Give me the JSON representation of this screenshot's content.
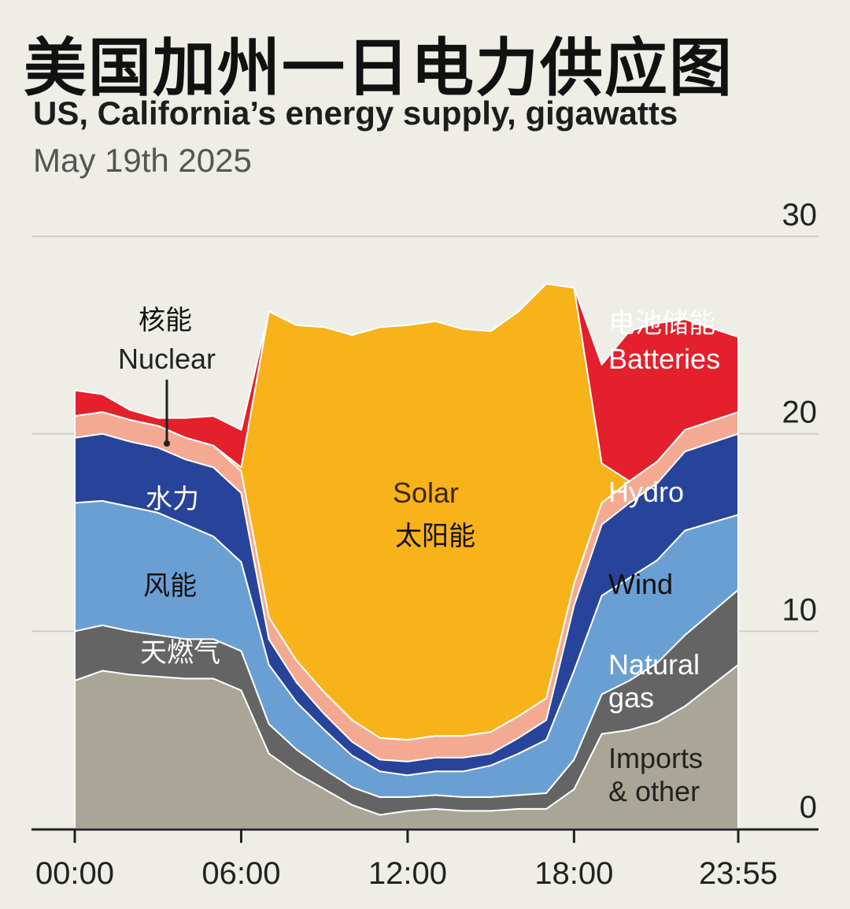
{
  "header": {
    "title_cn": "美国加州一日电力供应图",
    "subtitle": "US, California’s energy supply, gigawatts",
    "date": "May 19th 2025"
  },
  "chart_data": {
    "type": "area",
    "stacked": true,
    "x_unit": "hours",
    "x": [
      0,
      1,
      2,
      3,
      4,
      5,
      6,
      7,
      8,
      9,
      10,
      11,
      12,
      13,
      14,
      15,
      16,
      17,
      18,
      19,
      20,
      21,
      22,
      23.92
    ],
    "xticks": [
      "00:00",
      "06:00",
      "12:00",
      "18:00",
      "23:55"
    ],
    "xtick_values": [
      0,
      6,
      12,
      18,
      23.92
    ],
    "yticks": [
      0,
      10,
      20,
      30
    ],
    "ylim": [
      0,
      30
    ],
    "grid": true,
    "series": [
      {
        "name": "Imports & other",
        "label_en": "Imports\n& other",
        "color": "#a9a697",
        "values": [
          7.5,
          8.0,
          7.8,
          7.7,
          7.6,
          7.6,
          7.0,
          3.8,
          2.8,
          2.0,
          1.2,
          0.7,
          0.9,
          1.0,
          0.9,
          0.9,
          1.0,
          1.0,
          2.0,
          4.8,
          5.0,
          5.4,
          6.2,
          8.3
        ]
      },
      {
        "name": "Natural gas",
        "label_cn": "天燃气",
        "label_en": "Natural\ngas",
        "color": "#646464",
        "values": [
          2.5,
          2.3,
          2.2,
          2.1,
          2.0,
          2.0,
          2.0,
          1.5,
          1.2,
          1.0,
          0.9,
          0.9,
          0.7,
          0.7,
          0.7,
          0.7,
          0.7,
          0.8,
          1.5,
          2.0,
          2.5,
          3.0,
          3.6,
          3.8
        ]
      },
      {
        "name": "Wind",
        "label_cn": "风能",
        "label_en": "Wind",
        "color": "#6a9fd4",
        "values": [
          6.5,
          6.3,
          6.3,
          6.2,
          5.8,
          5.2,
          4.5,
          3.0,
          2.4,
          2.0,
          1.6,
          1.3,
          1.1,
          1.2,
          1.3,
          1.6,
          2.1,
          2.7,
          4.5,
          5.0,
          5.2,
          5.2,
          5.3,
          3.8
        ]
      },
      {
        "name": "Hydro",
        "label_cn": "水力",
        "label_en": "Hydro",
        "color": "#27449a",
        "values": [
          3.3,
          3.4,
          3.3,
          3.3,
          3.3,
          3.5,
          3.5,
          1.3,
          1.0,
          0.8,
          0.7,
          0.6,
          0.7,
          0.7,
          0.7,
          0.6,
          0.8,
          1.0,
          3.3,
          3.6,
          3.8,
          3.9,
          4.0,
          4.1
        ]
      },
      {
        "name": "Nuclear",
        "label_cn": "核能",
        "label_en": "Nuclear",
        "color": "#f4aa92",
        "values": [
          1.1,
          1.1,
          1.1,
          1.1,
          1.1,
          1.1,
          1.1,
          1.1,
          1.1,
          1.1,
          1.1,
          1.1,
          1.1,
          1.1,
          1.1,
          1.1,
          1.1,
          1.1,
          1.1,
          1.1,
          1.1,
          1.1,
          1.1,
          1.1
        ]
      },
      {
        "name": "Solar",
        "label_cn": "太阳能",
        "label_en": "Solar",
        "color": "#f8b21a",
        "values": [
          0,
          0,
          0,
          0,
          0,
          0,
          0.2,
          15.5,
          17.0,
          18.5,
          19.5,
          20.8,
          21.0,
          21.0,
          20.6,
          20.3,
          20.5,
          21.0,
          15.0,
          2.0,
          0,
          0,
          0,
          0
        ]
      },
      {
        "name": "Batteries",
        "label_cn": "电池储能",
        "label_en": "Batteries",
        "color": "#e3202b",
        "values": [
          1.3,
          0.9,
          0.5,
          0.4,
          1.0,
          1.5,
          1.9,
          0,
          0,
          0,
          0,
          0,
          0,
          0,
          0,
          0,
          0,
          0,
          0,
          5.0,
          7.6,
          7.0,
          5.6,
          3.8
        ]
      }
    ]
  }
}
